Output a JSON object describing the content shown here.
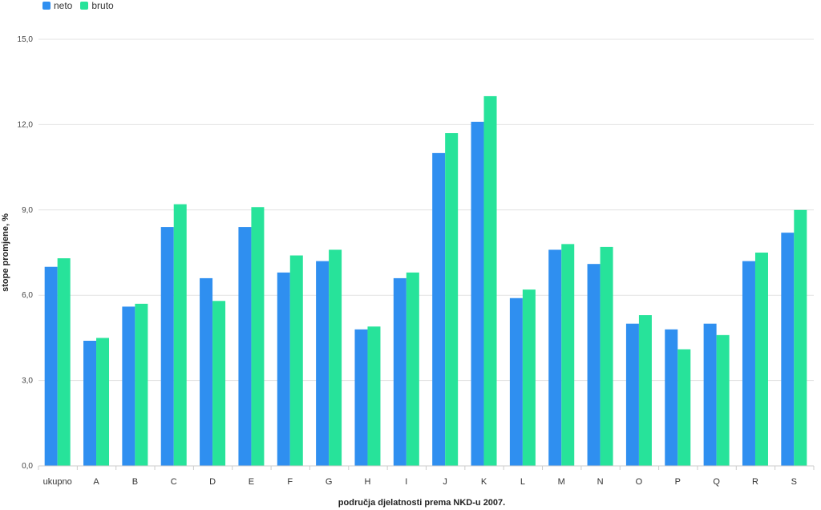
{
  "chart_data": {
    "type": "bar",
    "title": "",
    "xlabel": "područja djelatnosti prema NKD-u 2007.",
    "ylabel": "stope promjene, %",
    "ylim": [
      0,
      15
    ],
    "yticks": [
      "0,0",
      "3,0",
      "6,0",
      "9,0",
      "12,0",
      "15,0"
    ],
    "ytick_values": [
      0,
      3,
      6,
      9,
      12,
      15
    ],
    "grid": "horizontal",
    "legend_position": "top-left",
    "categories": [
      "ukupno",
      "A",
      "B",
      "C",
      "D",
      "E",
      "F",
      "G",
      "H",
      "I",
      "J",
      "K",
      "L",
      "M",
      "N",
      "O",
      "P",
      "Q",
      "R",
      "S"
    ],
    "series": [
      {
        "name": "neto",
        "color": "#2f8ff0",
        "values": [
          7.0,
          4.4,
          5.6,
          8.4,
          6.6,
          8.4,
          6.8,
          7.2,
          4.8,
          6.6,
          11.0,
          12.1,
          5.9,
          7.6,
          7.1,
          5.0,
          4.8,
          5.0,
          7.2,
          8.2
        ]
      },
      {
        "name": "bruto",
        "color": "#27e39a",
        "values": [
          7.3,
          4.5,
          5.7,
          9.2,
          5.8,
          9.1,
          7.4,
          7.6,
          4.9,
          6.8,
          11.7,
          13.0,
          6.2,
          7.8,
          7.7,
          5.3,
          4.1,
          4.6,
          7.5,
          9.0
        ]
      }
    ]
  }
}
